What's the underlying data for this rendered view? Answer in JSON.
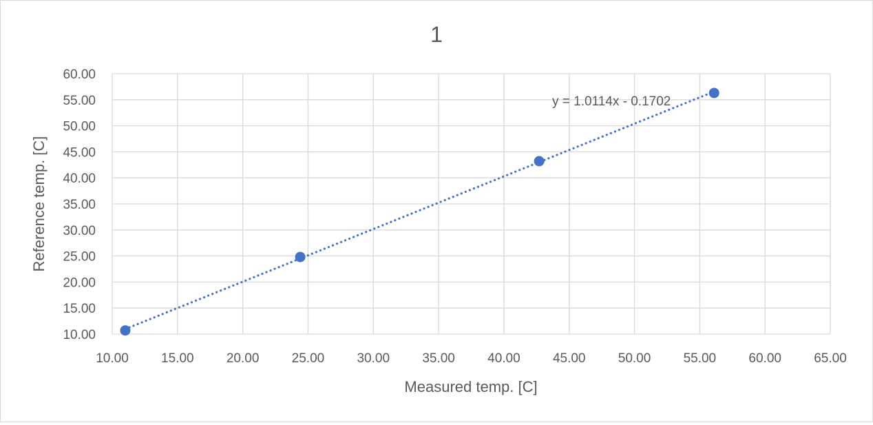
{
  "chart_data": {
    "type": "scatter",
    "title": "1",
    "xlabel": "Measured temp. [C]",
    "ylabel": "Reference temp. [C]",
    "xlim": [
      10,
      65
    ],
    "ylim": [
      10,
      60
    ],
    "xticks": [
      "10.00",
      "15.00",
      "20.00",
      "25.00",
      "30.00",
      "35.00",
      "40.00",
      "45.00",
      "50.00",
      "55.00",
      "60.00",
      "65.00"
    ],
    "yticks": [
      "10.00",
      "15.00",
      "20.00",
      "25.00",
      "30.00",
      "35.00",
      "40.00",
      "45.00",
      "50.00",
      "55.00",
      "60.00"
    ],
    "grid": true,
    "series": [
      {
        "points": [
          {
            "x": 11.0,
            "y": 10.7
          },
          {
            "x": 24.4,
            "y": 24.8
          },
          {
            "x": 42.7,
            "y": 43.2
          },
          {
            "x": 56.1,
            "y": 56.3
          }
        ]
      }
    ],
    "trendline": {
      "type": "linear",
      "slope": 1.0114,
      "intercept": -0.1702,
      "x_range": [
        11.0,
        56.1
      ],
      "style": "dotted",
      "equation_label": "y = 1.0114x - 0.1702"
    },
    "colors": {
      "marker": "#4472c4",
      "trendline": "#4472c4",
      "grid": "#d9d9d9",
      "text": "#595959"
    }
  }
}
